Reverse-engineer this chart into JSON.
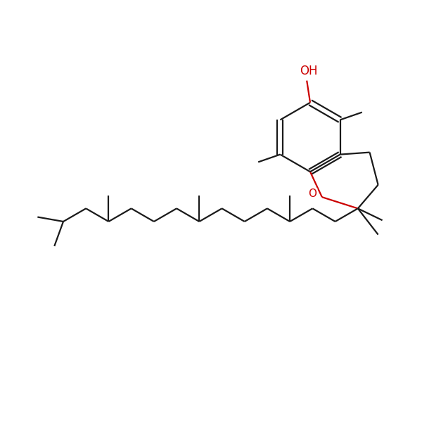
{
  "bg_color": "#ffffff",
  "bond_color": "#1a1a1a",
  "o_color": "#cc0000",
  "lw": 1.6,
  "fs": 11,
  "figsize": [
    6.0,
    6.0
  ],
  "dpi": 100,
  "xlim": [
    0,
    10
  ],
  "ylim": [
    0,
    10
  ]
}
